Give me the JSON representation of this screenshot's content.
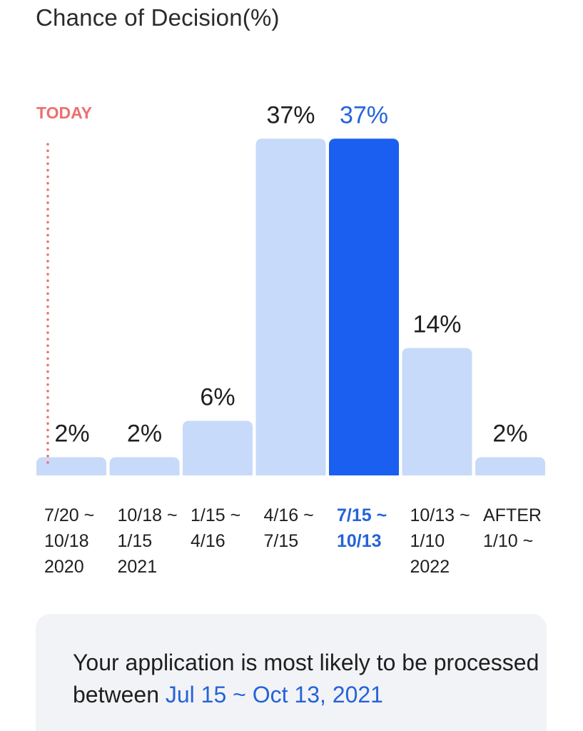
{
  "today_label": "TODAY",
  "accent_color": "#1a5ff0",
  "bar_color": "#c8dafa",
  "today_color": "#ee6e6e",
  "chart_data": {
    "type": "bar",
    "title": "Chance of Decision(%)",
    "xlabel": "",
    "ylabel": "",
    "ylim": [
      0,
      40
    ],
    "categories": [
      [
        "7/20 ~",
        "10/18",
        "2020"
      ],
      [
        "10/18 ~",
        "1/15",
        "2021"
      ],
      [
        "1/15 ~",
        "4/16"
      ],
      [
        "4/16 ~",
        "7/15"
      ],
      [
        "7/15 ~",
        "10/13"
      ],
      [
        "10/13 ~",
        "1/10",
        "2022"
      ],
      [
        "AFTER",
        "1/10 ~"
      ]
    ],
    "values": [
      2,
      2,
      6,
      37,
      37,
      14,
      2
    ],
    "data_labels": [
      "2%",
      "2%",
      "6%",
      "37%",
      "37%",
      "14%",
      "2%"
    ],
    "highlight_index": 4,
    "grid": false,
    "legend": "none"
  },
  "summary": {
    "text": "Your application is most likely to be processed between ",
    "highlight": "Jul 15 ~ Oct 13, 2021"
  }
}
